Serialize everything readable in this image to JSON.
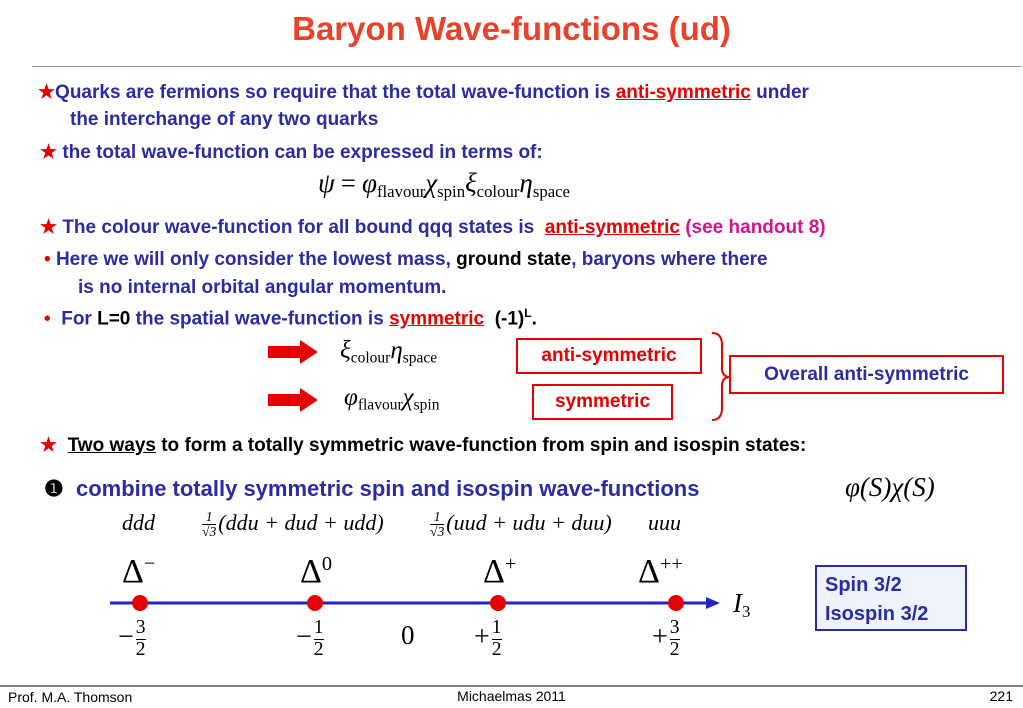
{
  "title": "Baryon Wave-functions (ud)",
  "points": [
    {
      "marker": "★",
      "text": "Quarks are fermions so require that the total wave-function is",
      "emphasis": "anti-symmetric",
      "tail": "under",
      "continuation": "the interchange of any two quarks"
    },
    {
      "marker": "★",
      "text": "the total wave-function can be expressed in terms of:"
    },
    {
      "marker": "★",
      "text": "The colour wave-function for all bound qqq states is",
      "emphasis": "anti-symmetric",
      "note": "(see handout 8)"
    },
    {
      "marker": "•",
      "text": "Here we will only consider the lowest mass,",
      "highlight": "ground state",
      "tail": ", baryons where there",
      "continuation": "is no internal orbital angular momentum."
    },
    {
      "marker": "•",
      "text": "For",
      "highlight": "L=0",
      "middle": "the spatial wave-function is",
      "emphasis": "symmetric",
      "parity": "(-1)",
      "parity_exp": "L",
      "end": "."
    },
    {
      "marker": "★",
      "emphasis": "Two ways",
      "text": "to form a totally symmetric wave-function from spin and  isospin states:"
    },
    {
      "marker": "❶",
      "text": "combine totally symmetric spin and isospin wave-functions"
    }
  ],
  "equation": {
    "lhs": "ψ",
    "op": "=",
    "factors": [
      {
        "symbol": "φ",
        "sub": "flavour"
      },
      {
        "symbol": "χ",
        "sub": "spin"
      },
      {
        "symbol": "ξ",
        "sub": "colour"
      },
      {
        "symbol": "η",
        "sub": "space"
      }
    ]
  },
  "symmetry": {
    "rows": [
      {
        "factors": [
          {
            "symbol": "ξ",
            "sub": "colour"
          },
          {
            "symbol": "η",
            "sub": "space"
          }
        ],
        "label": "anti-symmetric"
      },
      {
        "factors": [
          {
            "symbol": "φ",
            "sub": "flavour"
          },
          {
            "symbol": "χ",
            "sub": "spin"
          }
        ],
        "label": "symmetric"
      }
    ],
    "overall": "Overall anti-symmetric"
  },
  "combined": "φ(S)χ(S)",
  "states": [
    {
      "plain": "ddd"
    },
    {
      "num": "1",
      "den": "√3",
      "expr": "(ddu + dud + udd)"
    },
    {
      "num": "1",
      "den": "√3",
      "expr": "(uud + udu + duu)"
    },
    {
      "plain": "uuu"
    }
  ],
  "particles": [
    {
      "symbol": "Δ",
      "charge": "−",
      "sign": "−",
      "num": "3",
      "den": "2"
    },
    {
      "symbol": "Δ",
      "charge": "0",
      "sign": "−",
      "num": "1",
      "den": "2"
    },
    {
      "symbol": "Δ",
      "charge": "+",
      "sign": "+",
      "num": "1",
      "den": "2"
    },
    {
      "symbol": "Δ",
      "charge": "++",
      "sign": "+",
      "num": "3",
      "den": "2"
    }
  ],
  "zero": "0",
  "axis": {
    "label": "I",
    "sub": "3"
  },
  "quantum_numbers": [
    "Spin 3/2",
    "Isospin 3/2"
  ],
  "footer": {
    "author": "Prof. M.A. Thomson",
    "term": "Michaelmas 2011",
    "page": "221"
  }
}
